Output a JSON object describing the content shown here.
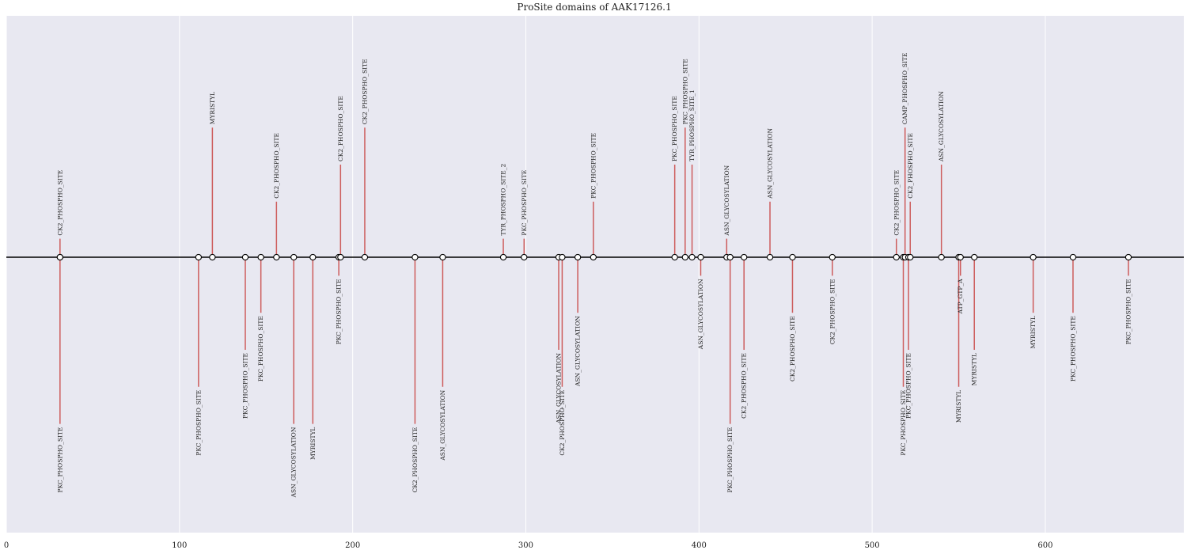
{
  "chart_data": {
    "type": "lollipop",
    "title": "ProSite domains of AAK17126.1",
    "xlabel": "",
    "ylabel": "",
    "xlim": [
      0,
      680
    ],
    "x_ticks": [
      0,
      100,
      200,
      300,
      400,
      500,
      600
    ],
    "grid": true,
    "colors": {
      "background": "#e8e8f1",
      "grid": "#ffffff",
      "stem": "#cd5c5c",
      "axis_line": "#000000",
      "marker_fill": "#ffffff",
      "marker_edge": "#000000"
    },
    "points": [
      {
        "x": 31,
        "y": 1,
        "label": "CK2_PHOSPHO_SITE"
      },
      {
        "x": 31,
        "y": -9,
        "label": "PKC_PHOSPHO_SITE"
      },
      {
        "x": 111,
        "y": -7,
        "label": "PKC_PHOSPHO_SITE"
      },
      {
        "x": 119,
        "y": 7,
        "label": "MYRISTYL"
      },
      {
        "x": 138,
        "y": -5,
        "label": "PKC_PHOSPHO_SITE"
      },
      {
        "x": 147,
        "y": -3,
        "label": "PKC_PHOSPHO_SITE"
      },
      {
        "x": 156,
        "y": 3,
        "label": "CK2_PHOSPHO_SITE"
      },
      {
        "x": 166,
        "y": -9,
        "label": "ASN_GLYCOSYLATION"
      },
      {
        "x": 177,
        "y": -9,
        "label": "MYRISTYL"
      },
      {
        "x": 192,
        "y": -1,
        "label": "PKC_PHOSPHO_SITE"
      },
      {
        "x": 193,
        "y": 5,
        "label": "CK2_PHOSPHO_SITE"
      },
      {
        "x": 207,
        "y": 7,
        "label": "CK2_PHOSPHO_SITE"
      },
      {
        "x": 236,
        "y": -9,
        "label": "CK2_PHOSPHO_SITE"
      },
      {
        "x": 252,
        "y": -7,
        "label": "ASN_GLYCOSYLATION"
      },
      {
        "x": 287,
        "y": 1,
        "label": "TYR_PHOSPHO_SITE_2"
      },
      {
        "x": 299,
        "y": 1,
        "label": "PKC_PHOSPHO_SITE"
      },
      {
        "x": 319,
        "y": -5,
        "label": "ASN_GLYCOSYLATION"
      },
      {
        "x": 321,
        "y": -7,
        "label": "CK2_PHOSPHO_SITE"
      },
      {
        "x": 330,
        "y": -3,
        "label": "ASN_GLYCOSYLATION"
      },
      {
        "x": 339,
        "y": 3,
        "label": "PKC_PHOSPHO_SITE"
      },
      {
        "x": 386,
        "y": 5,
        "label": "PKC_PHOSPHO_SITE"
      },
      {
        "x": 392,
        "y": 7,
        "label": "PKC_PHOSPHO_SITE"
      },
      {
        "x": 396,
        "y": 5,
        "label": "TYR_PHOSPHO_SITE_1"
      },
      {
        "x": 401,
        "y": -1,
        "label": "ASN_GLYCOSYLATION"
      },
      {
        "x": 416,
        "y": 1,
        "label": "ASN_GLYCOSYLATION"
      },
      {
        "x": 418,
        "y": -9,
        "label": "PKC_PHOSPHO_SITE"
      },
      {
        "x": 426,
        "y": -5,
        "label": "CK2_PHOSPHO_SITE"
      },
      {
        "x": 441,
        "y": 3,
        "label": "ASN_GLYCOSYLATION"
      },
      {
        "x": 454,
        "y": -3,
        "label": "CK2_PHOSPHO_SITE"
      },
      {
        "x": 477,
        "y": -1,
        "label": "CK2_PHOSPHO_SITE"
      },
      {
        "x": 514,
        "y": 1,
        "label": "CK2_PHOSPHO_SITE"
      },
      {
        "x": 518,
        "y": -7,
        "label": "PKC_PHOSPHO_SITE"
      },
      {
        "x": 519,
        "y": 7,
        "label": "CAMP_PHOSPHO_SITE"
      },
      {
        "x": 521,
        "y": -5,
        "label": "PKC_PHOSPHO_SITE"
      },
      {
        "x": 522,
        "y": 3,
        "label": "CK2_PHOSPHO_SITE"
      },
      {
        "x": 540,
        "y": 5,
        "label": "ASN_GLYCOSYLATION"
      },
      {
        "x": 550,
        "y": -7,
        "label": "MYRISTYL"
      },
      {
        "x": 551,
        "y": -1,
        "label": "ATP_GTP_A"
      },
      {
        "x": 559,
        "y": -5,
        "label": "MYRISTYL"
      },
      {
        "x": 593,
        "y": -3,
        "label": "MYRISTYL"
      },
      {
        "x": 616,
        "y": -3,
        "label": "PKC_PHOSPHO_SITE"
      },
      {
        "x": 648,
        "y": -1,
        "label": "PKC_PHOSPHO_SITE"
      }
    ]
  }
}
